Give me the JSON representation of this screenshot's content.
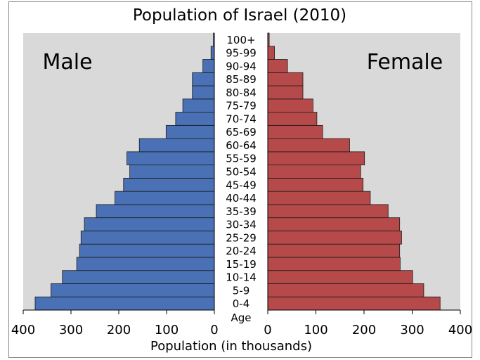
{
  "chart_data": {
    "type": "population-pyramid",
    "title": "Population of Israel (2010)",
    "xlabel": "Population (in thousands)",
    "center_axis_label": "Age",
    "left_label": "Male",
    "right_label": "Female",
    "xlim": [
      0,
      400
    ],
    "left_ticks": [
      "400",
      "300",
      "200",
      "100",
      "0"
    ],
    "right_ticks": [
      "0",
      "100",
      "200",
      "300",
      "400"
    ],
    "tick_values": [
      0,
      100,
      200,
      300,
      400
    ],
    "categories": [
      "0-4",
      "5-9",
      "10-14",
      "15-19",
      "20-24",
      "25-29",
      "30-34",
      "35-39",
      "40-44",
      "45-49",
      "50-54",
      "55-59",
      "60-64",
      "65-69",
      "70-74",
      "75-79",
      "80-84",
      "85-89",
      "90-94",
      "95-99",
      "100+"
    ],
    "series": [
      {
        "name": "Male",
        "color": "#4a71b5",
        "values": [
          375,
          342,
          318,
          288,
          282,
          279,
          272,
          247,
          208,
          190,
          177,
          183,
          157,
          101,
          81,
          66,
          46,
          46,
          24,
          7,
          2
        ]
      },
      {
        "name": "Female",
        "color": "#b64a4a",
        "values": [
          358,
          324,
          301,
          275,
          274,
          278,
          274,
          250,
          213,
          198,
          193,
          201,
          170,
          114,
          102,
          94,
          73,
          73,
          41,
          14,
          3
        ]
      }
    ],
    "panel_color": "#d9d9d9",
    "grid": false
  }
}
